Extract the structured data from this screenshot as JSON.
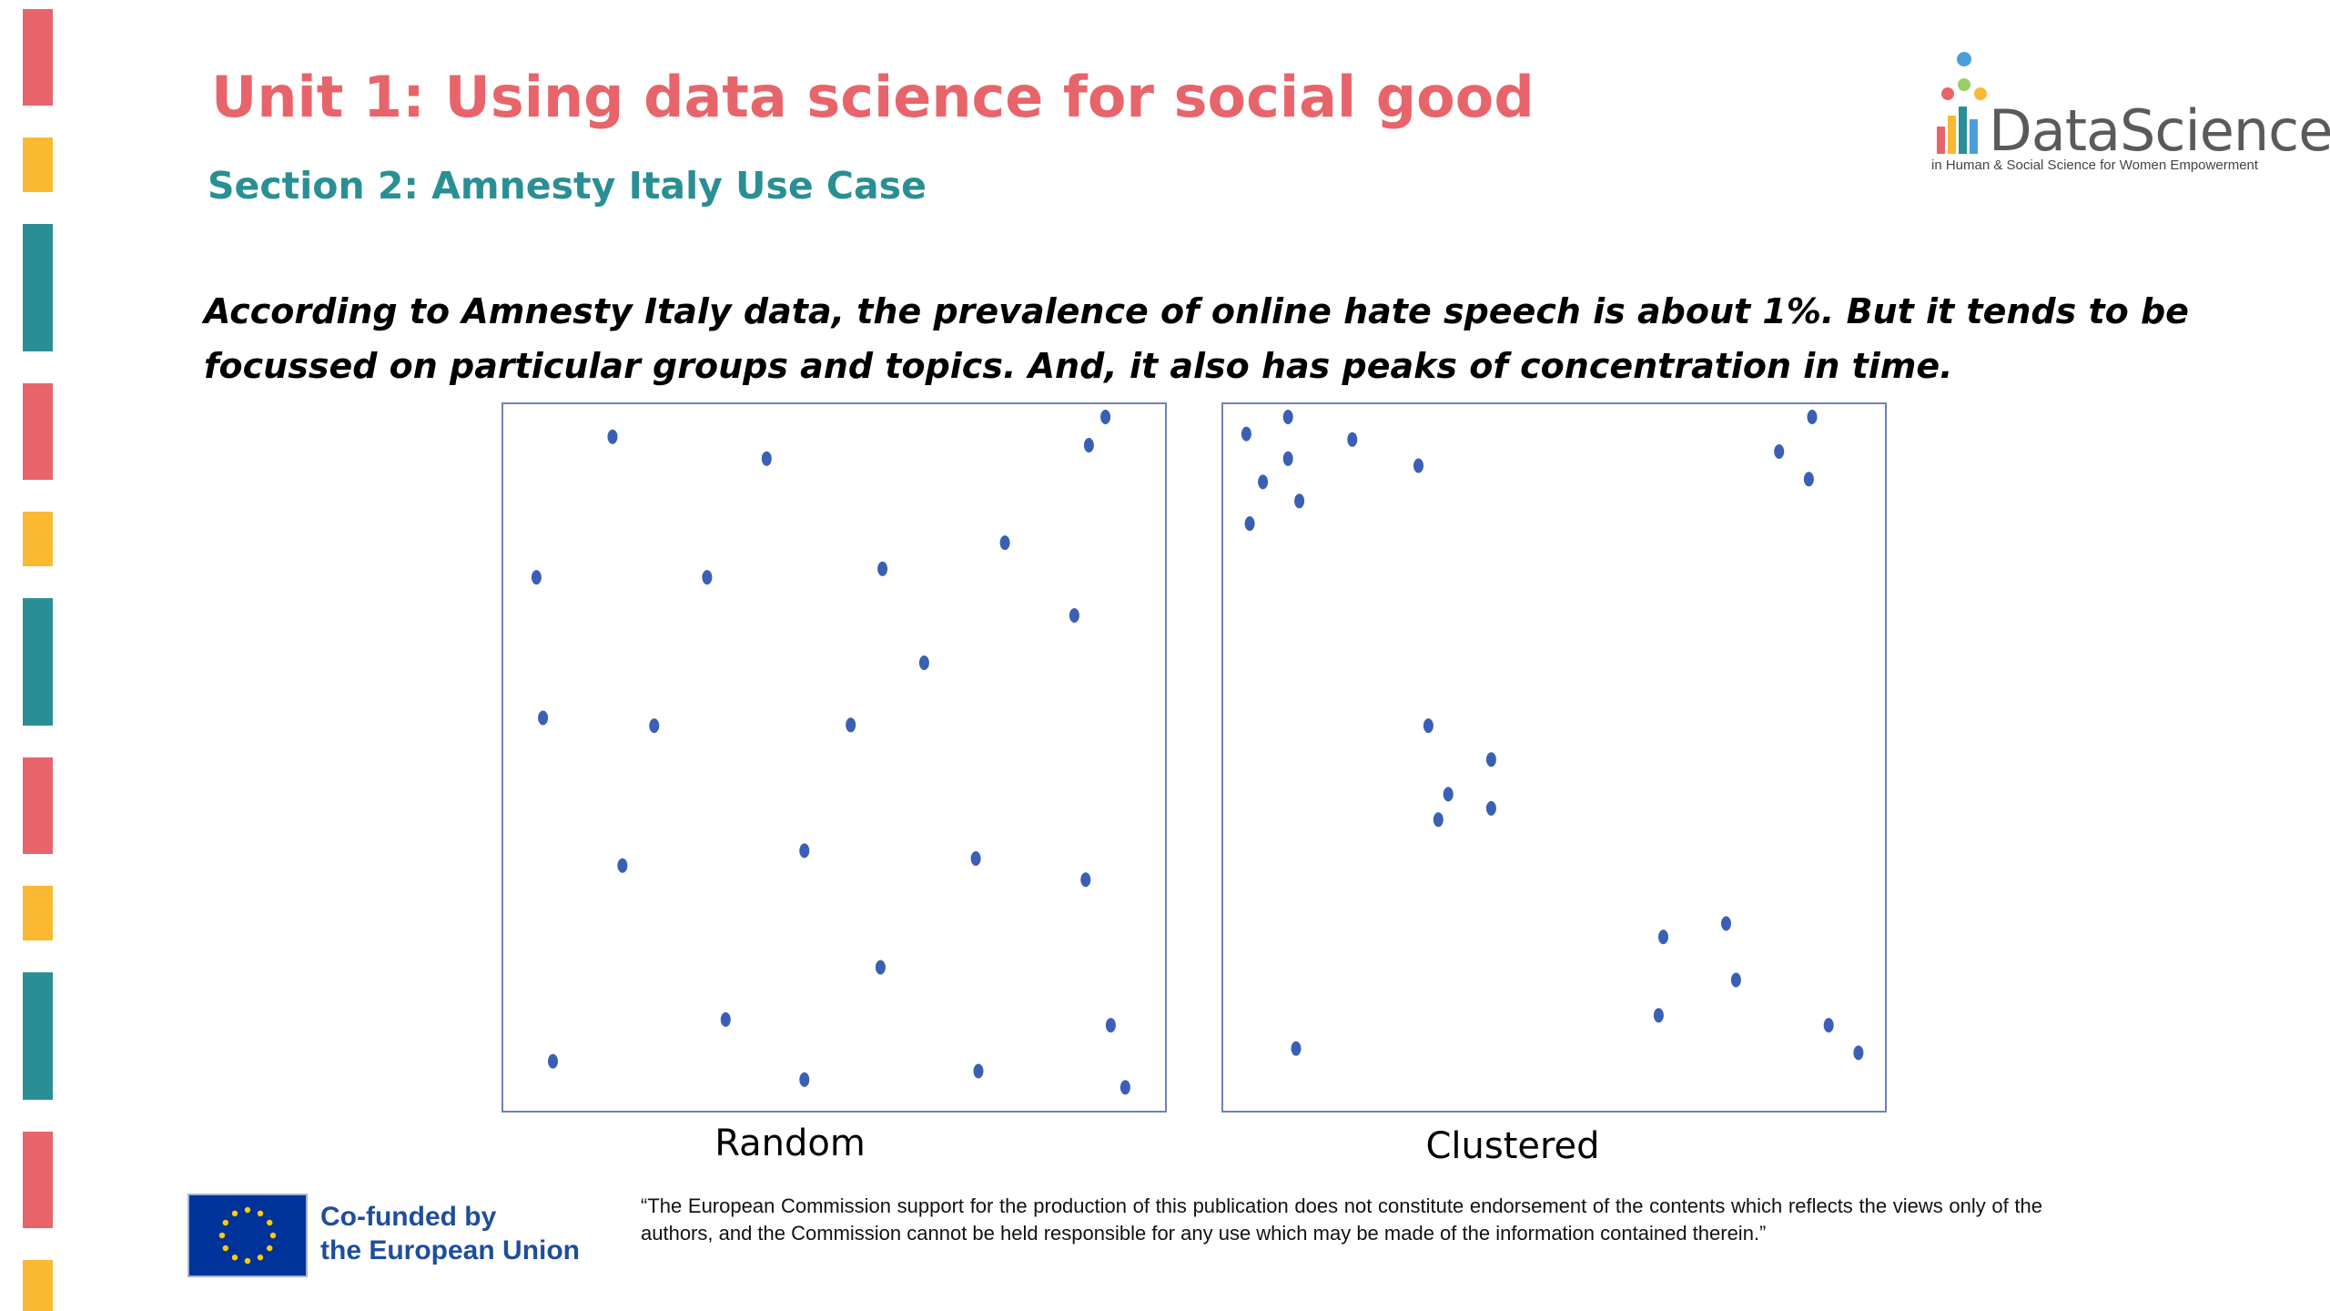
{
  "slide": {
    "title": "Unit 1: Using data science for social good",
    "subtitle": "Section 2: Amnesty Italy Use Case",
    "body_line1": "According to Amnesty Italy data, the prevalence of online hate speech is about 1%.  But it tends to be",
    "body_line2": "focussed on particular groups and topics.  And, it also has peaks of concentration in time.",
    "accent_colors": {
      "title": "#e8646b",
      "subtitle": "#2a8f95",
      "stripe_red": "#e8646b",
      "stripe_yellow": "#fbb833",
      "stripe_teal": "#2a8f95",
      "dot": "#3a5fb5"
    }
  },
  "stripes": [
    "red",
    "yellow",
    "teal",
    "red",
    "yellow",
    "teal",
    "red",
    "yellow",
    "teal",
    "red",
    "yellow"
  ],
  "logo": {
    "word": "DataScience",
    "tagline": "in Human & Social Science for Women Empowerment",
    "icon": "people-chart-logo-icon"
  },
  "chart_data": [
    {
      "type": "scatter",
      "xlabel": "Random",
      "points": [
        {
          "x": 0.165,
          "y": 0.954
        },
        {
          "x": 0.398,
          "y": 0.923
        },
        {
          "x": 0.91,
          "y": 0.982
        },
        {
          "x": 0.05,
          "y": 0.755
        },
        {
          "x": 0.308,
          "y": 0.755
        },
        {
          "x": 0.573,
          "y": 0.767
        },
        {
          "x": 0.758,
          "y": 0.804
        },
        {
          "x": 0.863,
          "y": 0.701
        },
        {
          "x": 0.636,
          "y": 0.634
        },
        {
          "x": 0.06,
          "y": 0.556
        },
        {
          "x": 0.228,
          "y": 0.545
        },
        {
          "x": 0.525,
          "y": 0.546
        },
        {
          "x": 0.18,
          "y": 0.347
        },
        {
          "x": 0.455,
          "y": 0.368
        },
        {
          "x": 0.714,
          "y": 0.357
        },
        {
          "x": 0.88,
          "y": 0.327
        },
        {
          "x": 0.57,
          "y": 0.203
        },
        {
          "x": 0.336,
          "y": 0.129
        },
        {
          "x": 0.075,
          "y": 0.07
        },
        {
          "x": 0.455,
          "y": 0.044
        },
        {
          "x": 0.718,
          "y": 0.056
        },
        {
          "x": 0.918,
          "y": 0.121
        },
        {
          "x": 0.94,
          "y": 0.033
        },
        {
          "x": 0.885,
          "y": 0.942
        }
      ]
    },
    {
      "type": "scatter",
      "xlabel": "Clustered",
      "points": [
        {
          "x": 0.035,
          "y": 0.958
        },
        {
          "x": 0.098,
          "y": 0.982
        },
        {
          "x": 0.098,
          "y": 0.923
        },
        {
          "x": 0.06,
          "y": 0.89
        },
        {
          "x": 0.115,
          "y": 0.863
        },
        {
          "x": 0.04,
          "y": 0.831
        },
        {
          "x": 0.195,
          "y": 0.95
        },
        {
          "x": 0.295,
          "y": 0.913
        },
        {
          "x": 0.84,
          "y": 0.933
        },
        {
          "x": 0.89,
          "y": 0.982
        },
        {
          "x": 0.885,
          "y": 0.894
        },
        {
          "x": 0.31,
          "y": 0.545
        },
        {
          "x": 0.405,
          "y": 0.497
        },
        {
          "x": 0.34,
          "y": 0.448
        },
        {
          "x": 0.325,
          "y": 0.412
        },
        {
          "x": 0.405,
          "y": 0.428
        },
        {
          "x": 0.665,
          "y": 0.246
        },
        {
          "x": 0.76,
          "y": 0.265
        },
        {
          "x": 0.775,
          "y": 0.185
        },
        {
          "x": 0.658,
          "y": 0.135
        },
        {
          "x": 0.915,
          "y": 0.121
        },
        {
          "x": 0.96,
          "y": 0.082
        },
        {
          "x": 0.11,
          "y": 0.088
        }
      ]
    }
  ],
  "footer": {
    "eu_line1": "Co-funded by",
    "eu_line2": "the European Union",
    "flag_icon": "eu-flag-icon",
    "disclaimer": "“The European Commission support for the production of this publication does not constitute endorsement of the contents which reflects the views only of the authors, and the Commission cannot be held responsible for any use which may be made of the information contained therein.”"
  }
}
